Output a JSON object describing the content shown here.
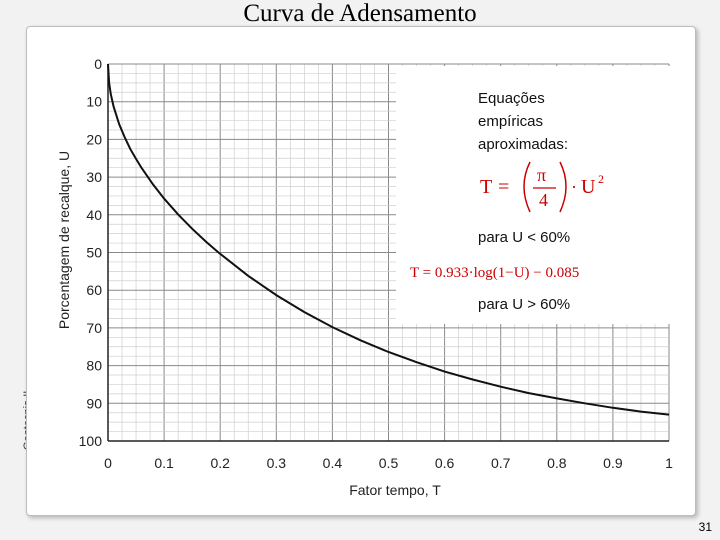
{
  "slide": {
    "title": "Curva de Adensamento",
    "side_label": "Geotecnia II",
    "page_number": "31"
  },
  "equations": {
    "heading_lines": [
      "Equações",
      "empíricas",
      "aproximadas:"
    ],
    "eq1": {
      "lhs": "T",
      "eq": "=",
      "pi": "π",
      "den": "4",
      "dot": "·",
      "var": "U",
      "exp": "2"
    },
    "cond1": "para U < 60%",
    "eq2": "T = 0.933·log(1−U) − 0.085",
    "cond2": "para U > 60%"
  },
  "chart_data": {
    "type": "line",
    "xlabel": "Fator tempo, T",
    "ylabel": "Porcentagem de recalque, U",
    "xlim": [
      0,
      1
    ],
    "ylim": [
      0,
      100
    ],
    "y_inverted": true,
    "grid": true,
    "x_ticks": [
      "0",
      "0.1",
      "0.2",
      "0.3",
      "0.4",
      "0.5",
      "0.6",
      "0.7",
      "0.8",
      "0.9",
      "1"
    ],
    "y_ticks": [
      "0",
      "10",
      "20",
      "30",
      "40",
      "50",
      "60",
      "70",
      "80",
      "90",
      "100"
    ],
    "series": [
      {
        "x": [
          0,
          0.002,
          0.005,
          0.01,
          0.02,
          0.03,
          0.04,
          0.05,
          0.06,
          0.08,
          0.1,
          0.125,
          0.15,
          0.175,
          0.197,
          0.25,
          0.3,
          0.35,
          0.4,
          0.45,
          0.5,
          0.55,
          0.6,
          0.65,
          0.7,
          0.75,
          0.8,
          0.85,
          0.9,
          0.95,
          1.0
        ],
        "y": [
          0,
          5,
          8,
          11.3,
          16,
          19.5,
          22.6,
          25.2,
          27.6,
          31.9,
          35.7,
          39.9,
          43.7,
          47.2,
          50,
          56.2,
          61.3,
          65.8,
          69.8,
          73.3,
          76.4,
          79.1,
          81.6,
          83.7,
          85.6,
          87.3,
          88.7,
          90.0,
          91.2,
          92.2,
          93.0
        ]
      }
    ]
  }
}
